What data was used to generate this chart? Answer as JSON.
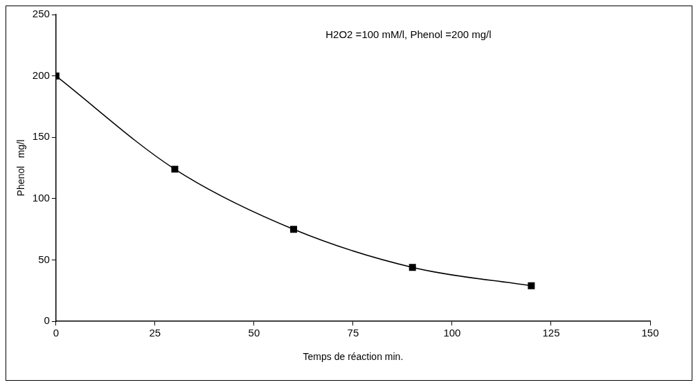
{
  "chart_data": {
    "type": "line",
    "xlabel": "Temps de réaction min.",
    "ylabel": "Phenol   mg/l",
    "annotations": [
      "H2O2 =100 mM/l, Phenol =200 mg/l"
    ],
    "x": [
      0,
      30,
      60,
      90,
      120
    ],
    "series": [
      {
        "color": "#000000",
        "values": [
          200,
          124,
          75,
          44,
          29
        ]
      }
    ],
    "xlim": [
      0,
      150
    ],
    "xticks": [
      0,
      25,
      50,
      75,
      100,
      125,
      150
    ],
    "ylim": [
      0,
      250
    ],
    "yticks": [
      0,
      50,
      100,
      150,
      200,
      250
    ],
    "grid": false,
    "legend": false,
    "marker": "square",
    "line_style": "solid"
  }
}
